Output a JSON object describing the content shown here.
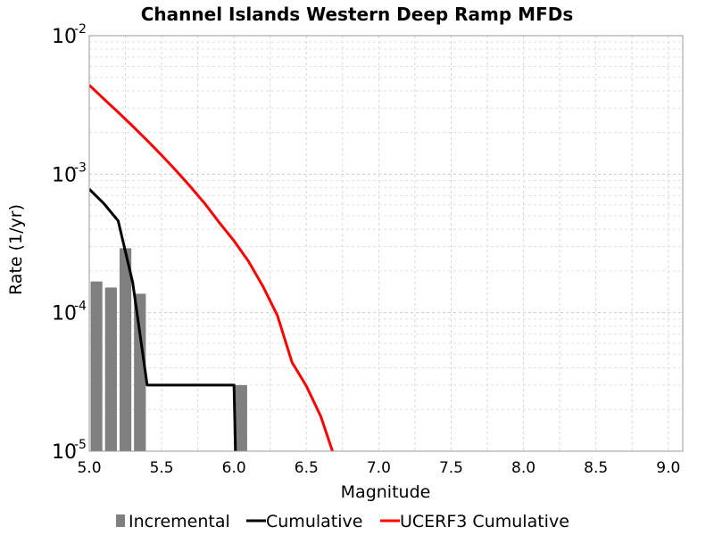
{
  "chart_data": {
    "type": "bar",
    "title": "Channel Islands Western Deep Ramp MFDs",
    "xlabel": "Magnitude",
    "ylabel": "Rate (1/yr)",
    "y_scale": "log",
    "xlim": [
      5.0,
      9.1
    ],
    "ylim": [
      1e-05,
      0.01
    ],
    "grid": true,
    "x_ticks": [
      "5.0",
      "5.5",
      "6.0",
      "6.5",
      "7.0",
      "7.5",
      "8.0",
      "8.5",
      "9.0"
    ],
    "y_ticks": [
      {
        "base": "10",
        "exp": "-5",
        "value": 1e-05
      },
      {
        "base": "10",
        "exp": "-4",
        "value": 0.0001
      },
      {
        "base": "10",
        "exp": "-3",
        "value": 0.001
      },
      {
        "base": "10",
        "exp": "-2",
        "value": 0.01
      }
    ],
    "legend_position": "bottom",
    "series": [
      {
        "name": "Incremental",
        "kind": "bar",
        "color": "#808080",
        "x": [
          5.05,
          5.15,
          5.25,
          5.35,
          6.05
        ],
        "values": [
          0.000168,
          0.000152,
          0.000292,
          0.000137,
          3e-05
        ]
      },
      {
        "name": "Cumulative",
        "kind": "line",
        "color": "#000000",
        "x": [
          5.0,
          5.1,
          5.2,
          5.3,
          5.4,
          6.0,
          6.01
        ],
        "values": [
          0.00078,
          0.000615,
          0.00046,
          0.000165,
          3e-05,
          3e-05,
          1e-05
        ]
      },
      {
        "name": "UCERF3 Cumulative",
        "kind": "line",
        "color": "#ff0000",
        "x": [
          5.0,
          5.1,
          5.2,
          5.3,
          5.4,
          5.5,
          5.6,
          5.7,
          5.8,
          5.9,
          6.0,
          6.1,
          6.2,
          6.3,
          6.4,
          6.5,
          6.6,
          6.68
        ],
        "values": [
          0.0044,
          0.0035,
          0.0028,
          0.00222,
          0.00175,
          0.00137,
          0.00106,
          0.00081,
          0.00061,
          0.000445,
          0.00033,
          0.000235,
          0.000155,
          9.5e-05,
          4.4e-05,
          2.95e-05,
          1.78e-05,
          1e-05
        ]
      }
    ]
  }
}
